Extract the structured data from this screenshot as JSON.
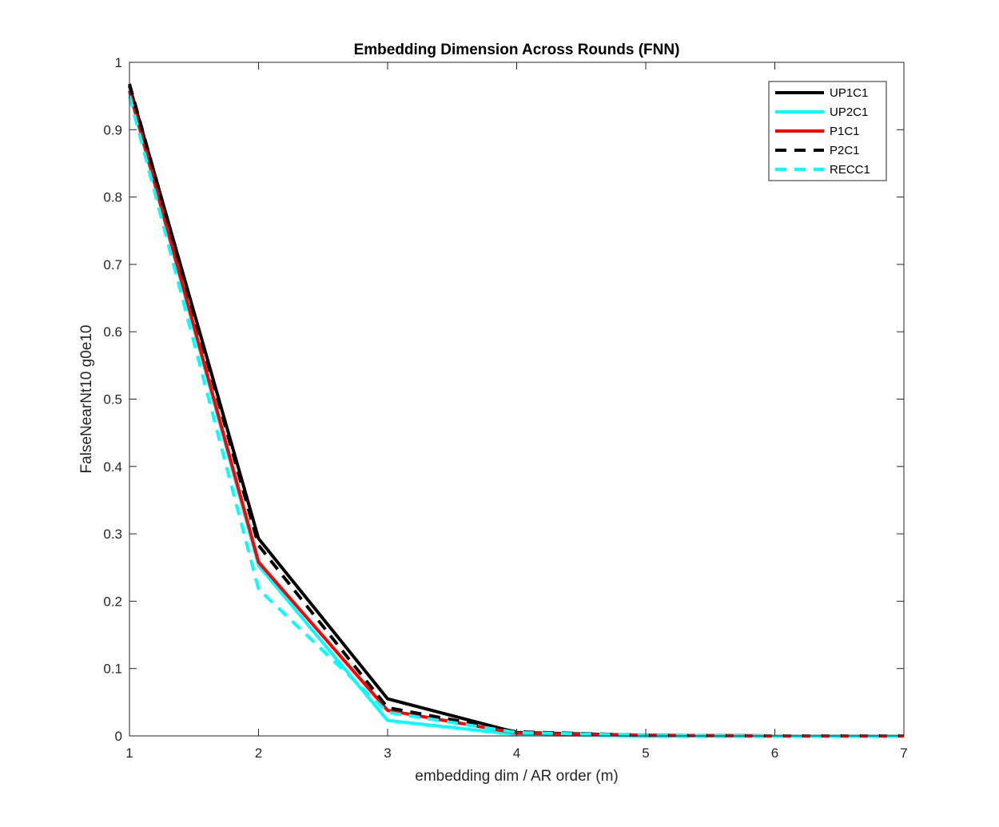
{
  "chart_data": {
    "type": "line",
    "title": "Embedding Dimension Across Rounds (FNN)",
    "xlabel": "embedding dim / AR order (m)",
    "ylabel": "FalseNearNt10 g0e10",
    "xlim": [
      1,
      7
    ],
    "ylim": [
      0,
      1
    ],
    "xticks": [
      "1",
      "2",
      "3",
      "4",
      "5",
      "6",
      "7"
    ],
    "yticks": [
      "0",
      "0.1",
      "0.2",
      "0.3",
      "0.4",
      "0.5",
      "0.6",
      "0.7",
      "0.8",
      "0.9",
      "1"
    ],
    "grid": false,
    "legend_position": "top-right",
    "x": [
      1,
      2,
      3,
      4,
      5,
      6,
      7
    ],
    "series": [
      {
        "name": "UP1C1",
        "color": "#000000",
        "style": "solid",
        "values": [
          0.965,
          0.293,
          0.055,
          0.005,
          0.001,
          0.0,
          0.0
        ]
      },
      {
        "name": "UP2C1",
        "color": "#00ffff",
        "style": "solid",
        "values": [
          0.955,
          0.253,
          0.023,
          0.002,
          0.0,
          0.0,
          0.0
        ]
      },
      {
        "name": "P1C1",
        "color": "#ff0000",
        "style": "solid",
        "values": [
          0.958,
          0.258,
          0.038,
          0.004,
          0.001,
          0.0,
          0.0
        ]
      },
      {
        "name": "P2C1",
        "color": "#000000",
        "style": "dashed",
        "values": [
          0.968,
          0.283,
          0.042,
          0.006,
          0.001,
          0.0,
          0.0
        ]
      },
      {
        "name": "RECC1",
        "color": "#00ffff",
        "style": "dashed",
        "values": [
          0.95,
          0.218,
          0.035,
          0.005,
          0.001,
          0.0,
          0.0
        ]
      }
    ]
  }
}
